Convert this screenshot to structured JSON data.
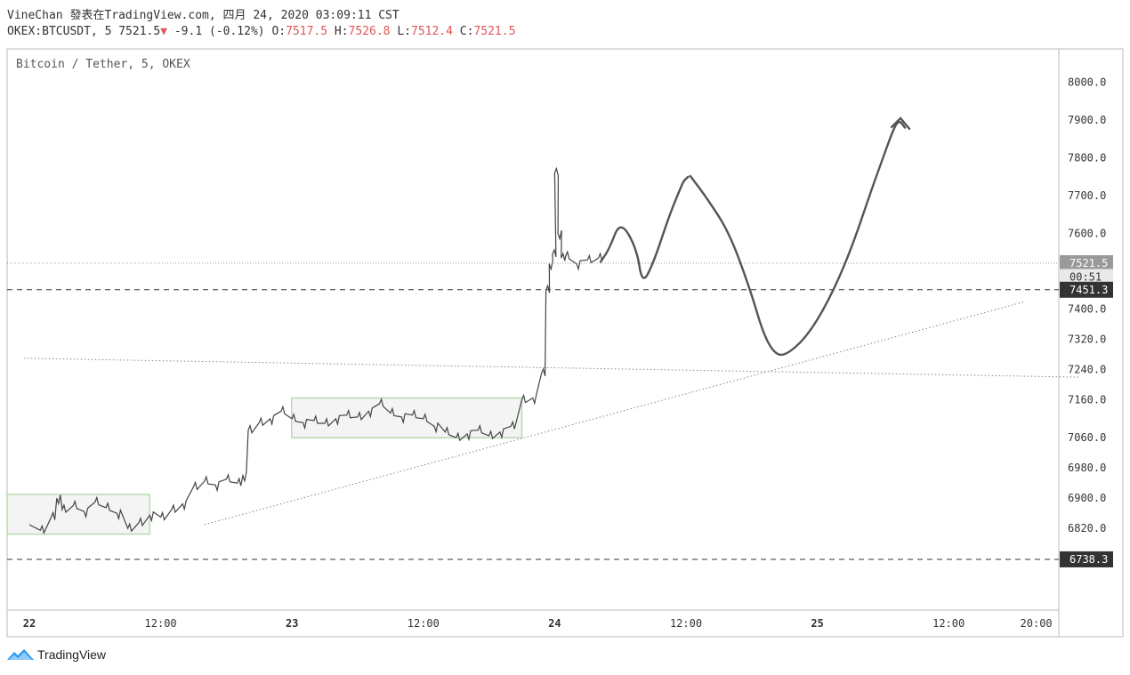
{
  "header": {
    "author": "VineChan",
    "published_text": "發表在TradingView.com,",
    "date_text": "四月 24, 2020 03:09:11 CST",
    "symbol": "OKEX:BTCUSDT, 5",
    "last": "7521.5",
    "change_arrow": "▼",
    "change": "-9.1 (-0.12%)",
    "o_label": "O:",
    "o": "7517.5",
    "h_label": "H:",
    "h": "7526.8",
    "l_label": "L:",
    "l": "7512.4",
    "c_label": "C:",
    "c": "7521.5"
  },
  "symbol_label": "Bitcoin / Tether, 5, OKEX",
  "brand": "TradingView",
  "colors": {
    "candles": "#444444",
    "down": "#e05555",
    "box_border": "#b7dcae",
    "box_fill": "#f3f4f3",
    "badge": "#333333",
    "badge_grey": "#9a9a9a"
  },
  "chart_data": {
    "type": "candlestick-line",
    "x_ticks": [
      "22",
      "12:00",
      "23",
      "12:00",
      "24",
      "12:00",
      "25",
      "12:00",
      "20:00"
    ],
    "x_tick_hours": [
      0,
      12,
      24,
      36,
      48,
      60,
      72,
      84,
      92
    ],
    "y_ticks": [
      "8000.0",
      "7900.0",
      "7800.0",
      "7700.0",
      "7600.0",
      "7400.0",
      "7320.0",
      "7240.0",
      "7160.0",
      "7060.0",
      "6980.0",
      "6900.0",
      "6820.0"
    ],
    "y_tick_values": [
      8000,
      7900,
      7800,
      7700,
      7600,
      7400,
      7320,
      7240,
      7160,
      7060,
      6980,
      6900,
      6820
    ],
    "price_labels": [
      {
        "text": "7521.5",
        "value": 7521.5,
        "style": "grey"
      },
      {
        "text": "00:51",
        "value": 7485,
        "style": "light"
      },
      {
        "text": "7451.3",
        "value": 7451.3,
        "style": "dark"
      },
      {
        "text": "6738.3",
        "value": 6738.3,
        "style": "dark"
      }
    ],
    "price_path": [
      [
        0,
        6830
      ],
      [
        1,
        6815
      ],
      [
        2,
        6850
      ],
      [
        2.5,
        6900
      ],
      [
        3,
        6870
      ],
      [
        4,
        6880
      ],
      [
        5,
        6865
      ],
      [
        6,
        6890
      ],
      [
        7,
        6875
      ],
      [
        8,
        6860
      ],
      [
        9,
        6820
      ],
      [
        10,
        6835
      ],
      [
        11,
        6855
      ],
      [
        12,
        6850
      ],
      [
        13,
        6870
      ],
      [
        14,
        6885
      ],
      [
        15,
        6930
      ],
      [
        16,
        6945
      ],
      [
        17,
        6935
      ],
      [
        18,
        6950
      ],
      [
        19,
        6940
      ],
      [
        19.5,
        6960
      ],
      [
        20,
        7080
      ],
      [
        21,
        7100
      ],
      [
        22,
        7110
      ],
      [
        23,
        7130
      ],
      [
        24,
        7110
      ],
      [
        25,
        7100
      ],
      [
        26,
        7105
      ],
      [
        27,
        7098
      ],
      [
        28,
        7110
      ],
      [
        29,
        7120
      ],
      [
        30,
        7115
      ],
      [
        31,
        7130
      ],
      [
        32,
        7150
      ],
      [
        33,
        7125
      ],
      [
        34,
        7115
      ],
      [
        35,
        7120
      ],
      [
        36,
        7110
      ],
      [
        37,
        7090
      ],
      [
        38,
        7075
      ],
      [
        39,
        7060
      ],
      [
        40,
        7070
      ],
      [
        41,
        7080
      ],
      [
        42,
        7065
      ],
      [
        43,
        7075
      ],
      [
        44,
        7090
      ],
      [
        45,
        7160
      ],
      [
        46,
        7165
      ],
      [
        46.8,
        7230
      ],
      [
        47.2,
        7450
      ],
      [
        47.5,
        7520
      ],
      [
        47.8,
        7545
      ],
      [
        48,
        7760
      ],
      [
        48.3,
        7600
      ],
      [
        48.6,
        7535
      ],
      [
        49,
        7540
      ],
      [
        50,
        7520
      ],
      [
        51,
        7530
      ],
      [
        52,
        7535
      ]
    ],
    "projection_path": [
      [
        52.2,
        7525
      ],
      [
        53,
        7560
      ],
      [
        54,
        7635
      ],
      [
        55.5,
        7560
      ],
      [
        56,
        7465
      ],
      [
        57,
        7520
      ],
      [
        58.5,
        7650
      ],
      [
        59.5,
        7720
      ],
      [
        59.8,
        7740
      ],
      [
        60.2,
        7750
      ]
    ],
    "projection_path2": [
      [
        60.4,
        7752
      ],
      [
        62,
        7690
      ],
      [
        64,
        7600
      ],
      [
        66,
        7440
      ],
      [
        67,
        7340
      ],
      [
        68,
        7285
      ],
      [
        69,
        7275
      ],
      [
        71,
        7325
      ],
      [
        73,
        7420
      ],
      [
        75,
        7550
      ],
      [
        77,
        7720
      ],
      [
        78,
        7800
      ],
      [
        79,
        7880
      ],
      [
        79.5,
        7900
      ],
      [
        80,
        7880
      ]
    ],
    "hlines": [
      7451.3,
      6738.3
    ],
    "current_price_line": 7521.5,
    "trendlines": [
      {
        "from": [
          16,
          6830
        ],
        "to": [
          91,
          7420
        ]
      },
      {
        "from": [
          -0.5,
          7270
        ],
        "to": [
          96,
          7220
        ]
      }
    ],
    "boxes": [
      {
        "x0": 0,
        "x1": 11,
        "y0": 6805,
        "y1": 6910
      },
      {
        "x0": 26,
        "x1": 45,
        "y0": 7060,
        "y1": 7165
      }
    ]
  }
}
